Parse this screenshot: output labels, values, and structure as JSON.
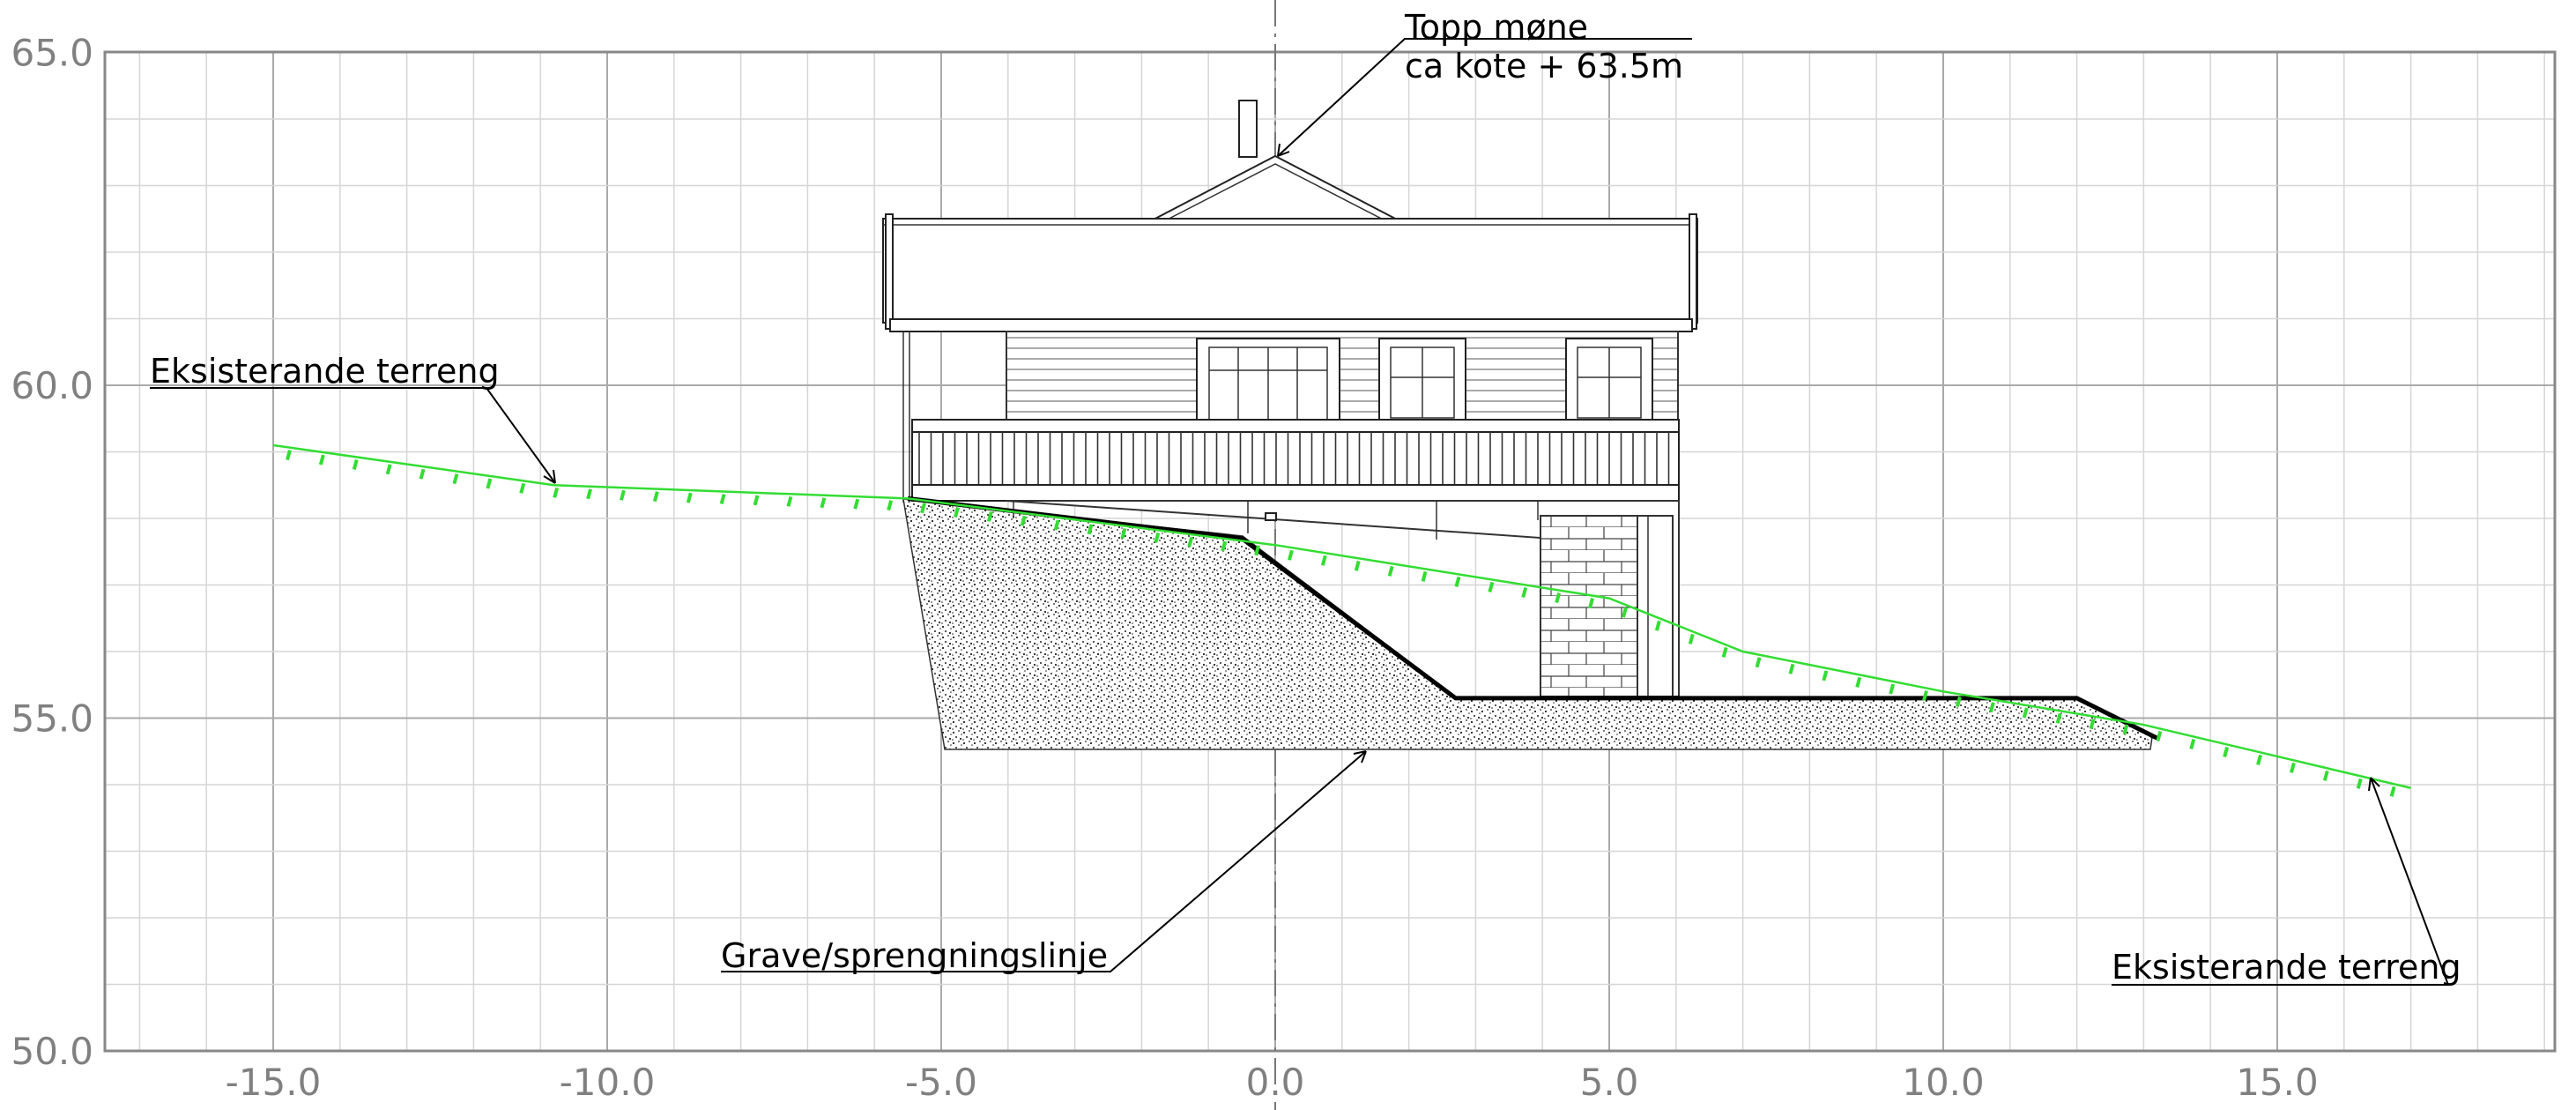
{
  "drawing": {
    "title": "",
    "x_axis": {
      "min": -17.5,
      "max": 19.2,
      "major_ticks": [
        -15,
        -10,
        -5,
        0,
        5,
        10,
        15
      ],
      "tick_labels": [
        "-15.0",
        "-10.0",
        "-5.0",
        "0.0",
        "5.0",
        "10.0",
        "15.0"
      ],
      "minor_step": 1
    },
    "y_axis": {
      "min": 50,
      "max": 65,
      "major_ticks": [
        50,
        55,
        60,
        65
      ],
      "tick_labels": [
        "50.0",
        "55.0",
        "60.0",
        "65.0"
      ],
      "minor_step": 1
    },
    "colors": {
      "terrain": "#33dd33",
      "grid": "#aaaaaa",
      "excavation": "#000000"
    }
  },
  "annotations": {
    "ridge_line1": "Topp møne",
    "ridge_line2": "ca kote  + 63.5m",
    "terrain_left": "Eksisterande terreng",
    "terrain_right": "Eksisterande terreng",
    "excavation_label": "Grave/sprengningslinje"
  },
  "chart_data": {
    "type": "line",
    "title": "",
    "xlabel": "",
    "ylabel": "",
    "xlim": [
      -17.5,
      19.2
    ],
    "ylim": [
      50,
      65
    ],
    "grid": true,
    "series": [
      {
        "points": [
          [
            -15.0,
            59.1
          ],
          [
            -10.8,
            58.5
          ],
          [
            -5.5,
            58.3
          ],
          [
            0.0,
            57.6
          ],
          [
            5.0,
            56.8
          ],
          [
            7.0,
            56.0
          ],
          [
            10.0,
            55.4
          ],
          [
            13.0,
            54.9
          ],
          [
            17.0,
            53.95
          ]
        ]
      },
      {
        "points": [
          [
            -5.5,
            58.3
          ],
          [
            -0.5,
            57.7
          ],
          [
            2.7,
            55.3
          ],
          [
            12.0,
            55.3
          ],
          [
            13.2,
            54.7
          ]
        ]
      }
    ],
    "annotations": [
      "Topp møne",
      "ca kote  + 63.5m",
      "Eksisterande terreng",
      "Grave/sprengningslinje"
    ]
  }
}
